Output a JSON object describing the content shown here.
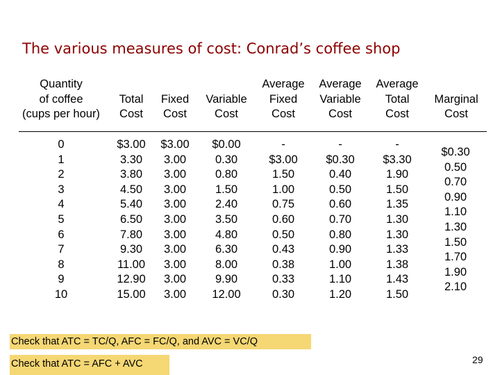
{
  "title": "The various measures of cost: Conrad’s coffee shop",
  "columns": [
    {
      "header": [
        "Quantity",
        "of coffee",
        "(cups per hour)"
      ],
      "values": [
        "0",
        "1",
        "2",
        "3",
        "4",
        "5",
        "6",
        "7",
        "8",
        "9",
        "10"
      ]
    },
    {
      "header": [
        "Total",
        "Cost"
      ],
      "values": [
        "$3.00",
        "3.30",
        "3.80",
        "4.50",
        "5.40",
        "6.50",
        "7.80",
        "9.30",
        "11.00",
        "12.90",
        "15.00"
      ]
    },
    {
      "header": [
        "Fixed",
        "Cost"
      ],
      "values": [
        "$3.00",
        "3.00",
        "3.00",
        "3.00",
        "3.00",
        "3.00",
        "3.00",
        "3.00",
        "3.00",
        "3.00",
        "3.00"
      ]
    },
    {
      "header": [
        "Variable",
        "Cost"
      ],
      "values": [
        "$0.00",
        "0.30",
        "0.80",
        "1.50",
        "2.40",
        "3.50",
        "4.80",
        "6.30",
        "8.00",
        "9.90",
        "12.00"
      ]
    },
    {
      "header": [
        "Average",
        "Fixed",
        "Cost"
      ],
      "values": [
        "-",
        "$3.00",
        "1.50",
        "1.00",
        "0.75",
        "0.60",
        "0.50",
        "0.43",
        "0.38",
        "0.33",
        "0.30"
      ]
    },
    {
      "header": [
        "Average",
        "Variable",
        "Cost"
      ],
      "values": [
        "-",
        "$0.30",
        "0.40",
        "0.50",
        "0.60",
        "0.70",
        "0.80",
        "0.90",
        "1.00",
        "1.10",
        "1.20"
      ]
    },
    {
      "header": [
        "Average",
        "Total",
        "Cost"
      ],
      "values": [
        "-",
        "$3.30",
        "1.90",
        "1.50",
        "1.35",
        "1.30",
        "1.30",
        "1.33",
        "1.38",
        "1.43",
        "1.50"
      ]
    },
    {
      "header": [
        "Marginal",
        "Cost"
      ],
      "values": [
        "$0.30",
        "0.50",
        "0.70",
        "0.90",
        "1.10",
        "1.30",
        "1.50",
        "1.70",
        "1.90",
        "2.10"
      ]
    }
  ],
  "notes": {
    "check1": "Check that ATC = TC/Q, AFC = FC/Q, and AVC = VC/Q",
    "check2": "Check that ATC = AFC + AVC"
  },
  "page_number": "29"
}
